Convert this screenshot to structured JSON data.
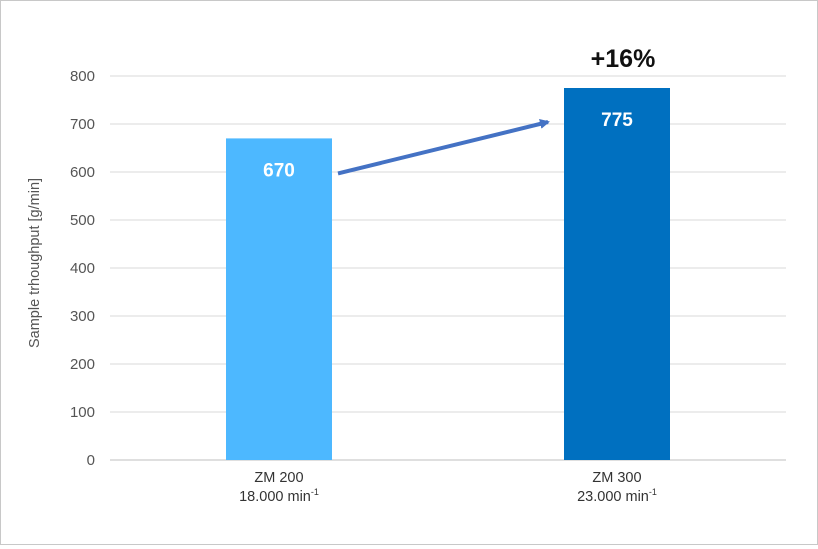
{
  "chart_data": {
    "type": "bar",
    "title": "",
    "xlabel": "",
    "ylabel": "Sample trhoughput [g/min]",
    "ylim": [
      0,
      800
    ],
    "yticks": [
      0,
      100,
      200,
      300,
      400,
      500,
      600,
      700,
      800
    ],
    "grid": true,
    "categories": [
      {
        "name": "ZM 200",
        "speed": "18.000 min",
        "speed_sup": "-1"
      },
      {
        "name": "ZM 300",
        "speed": "23.000 min",
        "speed_sup": "-1"
      }
    ],
    "values": [
      670,
      775
    ],
    "data_labels": [
      "670",
      "775"
    ],
    "colors": [
      "#4db8ff",
      "#0070c0"
    ],
    "annotation": {
      "text": "+16%",
      "arrow_color": "#4472c4",
      "from_category": "ZM 200",
      "to_category": "ZM 300"
    }
  }
}
